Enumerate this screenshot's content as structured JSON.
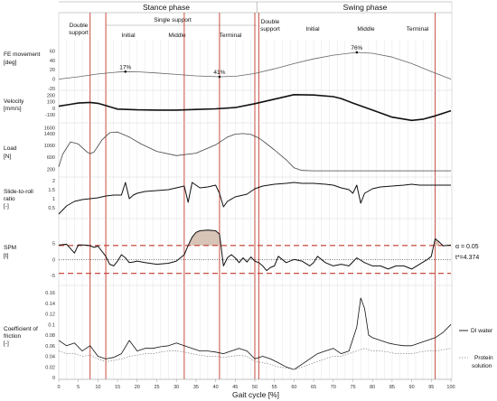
{
  "header": {
    "stance_label": "Stance phase",
    "swing_label": "Swing phase",
    "double_support_1": [
      "Double",
      "support"
    ],
    "single_support": "Single support",
    "double_support_2": [
      "Double",
      "support"
    ],
    "stance_sub": [
      "Initial",
      "Middle",
      "Terminal"
    ],
    "swing_sub": [
      "Initial",
      "Middle",
      "Terminal"
    ]
  },
  "x_axis": {
    "label": "Gait cycle [%]",
    "ticks": [
      0,
      5,
      10,
      15,
      20,
      25,
      30,
      35,
      40,
      45,
      50,
      55,
      60,
      65,
      70,
      75,
      80,
      85,
      90,
      95,
      100
    ],
    "range": [
      0,
      100
    ]
  },
  "phase_lines": {
    "red": [
      8,
      12,
      32,
      41,
      50,
      51,
      96
    ],
    "gray": [
      2,
      4,
      6,
      10,
      14,
      16,
      18,
      20,
      22,
      24,
      26,
      28,
      30,
      34,
      36,
      38,
      43,
      45,
      47,
      49,
      53,
      55,
      57,
      59,
      61,
      63,
      65,
      67,
      69,
      71,
      73,
      75,
      77,
      79,
      81,
      83,
      85,
      87,
      89,
      91,
      93,
      95,
      97,
      99
    ]
  },
  "chart_data": [
    {
      "type": "line",
      "id": "fe",
      "ylabel": [
        "FE movement",
        "[deg]"
      ],
      "ylim": [
        -20,
        80
      ],
      "yticks": [
        -20,
        0,
        20,
        40,
        60
      ],
      "annotations": [
        {
          "x": 17,
          "y": 16,
          "label": "17%"
        },
        {
          "x": 41,
          "y": 5,
          "label": "41%"
        },
        {
          "x": 76,
          "y": 57,
          "label": "76%"
        }
      ],
      "series": [
        {
          "x": [
            0,
            5,
            10,
            15,
            17,
            20,
            25,
            30,
            35,
            41,
            45,
            50,
            55,
            60,
            65,
            70,
            76,
            80,
            85,
            90,
            95,
            100
          ],
          "y": [
            0,
            5,
            11,
            15,
            16,
            15.5,
            13,
            10,
            7,
            5,
            6,
            12,
            22,
            33,
            43,
            51,
            57,
            55,
            47,
            33,
            16,
            0
          ],
          "color": "#666666",
          "width": 0.8
        }
      ]
    },
    {
      "type": "line",
      "id": "velocity",
      "ylabel": [
        "Velocity",
        "[mm/s]"
      ],
      "ylim": [
        -200,
        250
      ],
      "yticks": [
        -100,
        0,
        100,
        200
      ],
      "series": [
        {
          "x": [
            0,
            3,
            5,
            8,
            10,
            12,
            15,
            20,
            25,
            30,
            35,
            40,
            45,
            50,
            55,
            60,
            65,
            70,
            72,
            75,
            80,
            85,
            90,
            93,
            96,
            100
          ],
          "y": [
            30,
            60,
            80,
            90,
            75,
            40,
            -15,
            -25,
            -30,
            -30,
            -20,
            -10,
            10,
            70,
            140,
            210,
            205,
            180,
            150,
            80,
            -30,
            -140,
            -190,
            -170,
            -120,
            -40
          ],
          "color": "#111111",
          "width": 1.6
        }
      ]
    },
    {
      "type": "line",
      "id": "load",
      "ylabel": [
        "Load",
        "[N]"
      ],
      "ylim": [
        0,
        1700
      ],
      "yticks": [
        200,
        600,
        1000,
        1400,
        1600
      ],
      "series": [
        {
          "x": [
            0,
            1,
            3,
            5,
            7,
            8,
            9,
            11,
            13,
            15,
            18,
            21,
            25,
            30,
            35,
            40,
            43,
            45,
            47,
            49,
            51,
            52,
            55,
            58,
            60,
            62,
            65,
            70,
            80,
            90,
            100
          ],
          "y": [
            280,
            700,
            1120,
            1050,
            800,
            720,
            780,
            1180,
            1430,
            1450,
            1280,
            1050,
            800,
            660,
            740,
            1020,
            1280,
            1380,
            1400,
            1370,
            1250,
            1160,
            850,
            520,
            250,
            160,
            150,
            150,
            150,
            150,
            150
          ],
          "color": "#444444",
          "width": 0.8
        }
      ]
    },
    {
      "type": "line",
      "id": "slide",
      "ylabel": [
        "Slide-to-roll",
        "ratio",
        "[-]"
      ],
      "ylim": [
        0,
        2
      ],
      "yticks": [
        0.5,
        1,
        1.5,
        2
      ],
      "series": [
        {
          "x": [
            0,
            2,
            4,
            6,
            8,
            10,
            11,
            12,
            14,
            16,
            17,
            18,
            19,
            20,
            22,
            25,
            28,
            30,
            32,
            33,
            34,
            36,
            38,
            40,
            41,
            42,
            43,
            45,
            48,
            50,
            52,
            55,
            58,
            60,
            62,
            65,
            68,
            70,
            72,
            74,
            75,
            76,
            77,
            78,
            80,
            82,
            85,
            88,
            90,
            92,
            95,
            100
          ],
          "y": [
            0.15,
            0.6,
            0.85,
            0.95,
            1.0,
            1.05,
            1.1,
            1.15,
            1.2,
            1.2,
            1.9,
            1.0,
            1.2,
            1.3,
            1.4,
            1.45,
            1.5,
            1.6,
            1.7,
            0.8,
            1.9,
            1.6,
            1.65,
            1.75,
            1.3,
            0.55,
            0.85,
            1.1,
            1.25,
            1.55,
            1.7,
            1.8,
            1.85,
            1.9,
            1.85,
            1.85,
            1.8,
            1.75,
            1.6,
            1.5,
            1.3,
            1.75,
            0.75,
            1.3,
            1.55,
            1.65,
            1.7,
            1.75,
            1.8,
            1.75,
            1.75,
            1.75
          ],
          "color": "#111111",
          "width": 1.0
        }
      ]
    },
    {
      "type": "line",
      "id": "spm",
      "ylabel": [
        "SPM",
        "[t]"
      ],
      "ylim": [
        -7,
        10
      ],
      "yticks": [
        -5,
        0,
        5
      ],
      "threshold": 4.374,
      "annotations_text": [
        "α = 0.05",
        "t*=4.374"
      ],
      "series": [
        {
          "x": [
            0,
            2,
            4,
            5,
            7,
            8,
            9,
            10,
            12,
            13,
            14,
            15,
            16,
            17,
            18,
            19,
            20,
            22,
            25,
            28,
            30,
            32,
            33,
            34,
            35,
            36,
            38,
            40,
            41,
            42,
            43,
            44,
            45,
            46,
            47,
            48,
            49,
            50,
            51,
            52,
            53,
            54,
            55,
            56,
            57,
            58,
            60,
            62,
            64,
            65,
            66,
            68,
            70,
            72,
            74,
            76,
            78,
            80,
            82,
            84,
            86,
            88,
            90,
            92,
            94,
            95,
            96,
            97,
            98,
            100
          ],
          "y": [
            4.5,
            4.8,
            2,
            4.6,
            4.5,
            4.3,
            3.8,
            4.2,
            1,
            -1.5,
            -2,
            -0.5,
            1.5,
            0.5,
            -1,
            -0.8,
            -0.5,
            -1,
            -1.5,
            -1.2,
            -0.5,
            1.5,
            4.4,
            7,
            8.5,
            9,
            9.2,
            9,
            8,
            -2,
            0.5,
            1.5,
            0.5,
            -1,
            0.5,
            -0.8,
            0.8,
            -0.5,
            -1,
            -2,
            -3.5,
            -2.5,
            -2,
            1,
            0,
            -1,
            0,
            -0.5,
            -2,
            -1,
            1,
            -1,
            -2,
            -1.5,
            -2,
            0.5,
            -1,
            -2,
            -2,
            -3,
            -2,
            -2,
            -3,
            -1.5,
            0,
            1,
            6.5,
            5.5,
            4.3,
            4.5
          ],
          "color": "#111111",
          "width": 1.0
        }
      ]
    },
    {
      "type": "line",
      "id": "cof",
      "ylabel": [
        "Coefficient of",
        "friction",
        "[-]"
      ],
      "ylim": [
        0,
        0.16
      ],
      "yticks": [
        0,
        0.02,
        0.04,
        0.06,
        0.08,
        0.1,
        0.12,
        0.14,
        0.16
      ],
      "series": [
        {
          "name": "DI water",
          "x": [
            0,
            2,
            4,
            6,
            8,
            10,
            12,
            14,
            16,
            18,
            20,
            22,
            24,
            26,
            28,
            30,
            32,
            34,
            36,
            38,
            40,
            42,
            44,
            46,
            48,
            50,
            52,
            54,
            56,
            58,
            60,
            62,
            64,
            66,
            68,
            70,
            72,
            74,
            76,
            77,
            78,
            79,
            80,
            82,
            84,
            86,
            88,
            90,
            92,
            94,
            96,
            98,
            100
          ],
          "y": [
            0.07,
            0.06,
            0.065,
            0.05,
            0.06,
            0.04,
            0.035,
            0.038,
            0.045,
            0.07,
            0.05,
            0.055,
            0.055,
            0.058,
            0.06,
            0.065,
            0.06,
            0.055,
            0.05,
            0.05,
            0.048,
            0.045,
            0.05,
            0.055,
            0.05,
            0.035,
            0.04,
            0.035,
            0.028,
            0.02,
            0.015,
            0.025,
            0.035,
            0.045,
            0.05,
            0.055,
            0.045,
            0.05,
            0.095,
            0.15,
            0.13,
            0.08,
            0.075,
            0.07,
            0.065,
            0.062,
            0.06,
            0.06,
            0.065,
            0.07,
            0.075,
            0.085,
            0.1
          ],
          "color": "#111111",
          "width": 0.8
        },
        {
          "name": "Protein solution",
          "x": [
            0,
            2,
            4,
            6,
            8,
            10,
            12,
            14,
            16,
            18,
            20,
            22,
            24,
            26,
            28,
            30,
            32,
            34,
            36,
            38,
            40,
            42,
            44,
            46,
            48,
            50,
            52,
            54,
            56,
            58,
            60,
            62,
            64,
            66,
            68,
            70,
            72,
            74,
            76,
            78,
            80,
            82,
            84,
            86,
            88,
            90,
            92,
            94,
            96,
            98,
            100
          ],
          "y": [
            0.05,
            0.045,
            0.045,
            0.04,
            0.042,
            0.035,
            0.03,
            0.032,
            0.035,
            0.04,
            0.042,
            0.045,
            0.045,
            0.048,
            0.05,
            0.05,
            0.048,
            0.045,
            0.042,
            0.04,
            0.04,
            0.038,
            0.04,
            0.042,
            0.04,
            0.03,
            0.028,
            0.025,
            0.02,
            0.018,
            0.015,
            0.02,
            0.025,
            0.03,
            0.035,
            0.04,
            0.04,
            0.045,
            0.05,
            0.055,
            0.05,
            0.05,
            0.048,
            0.045,
            0.045,
            0.045,
            0.048,
            0.05,
            0.05,
            0.052,
            0.055
          ],
          "color": "#888888",
          "width": 0.7,
          "dash": "1.5,1.5"
        }
      ]
    }
  ]
}
